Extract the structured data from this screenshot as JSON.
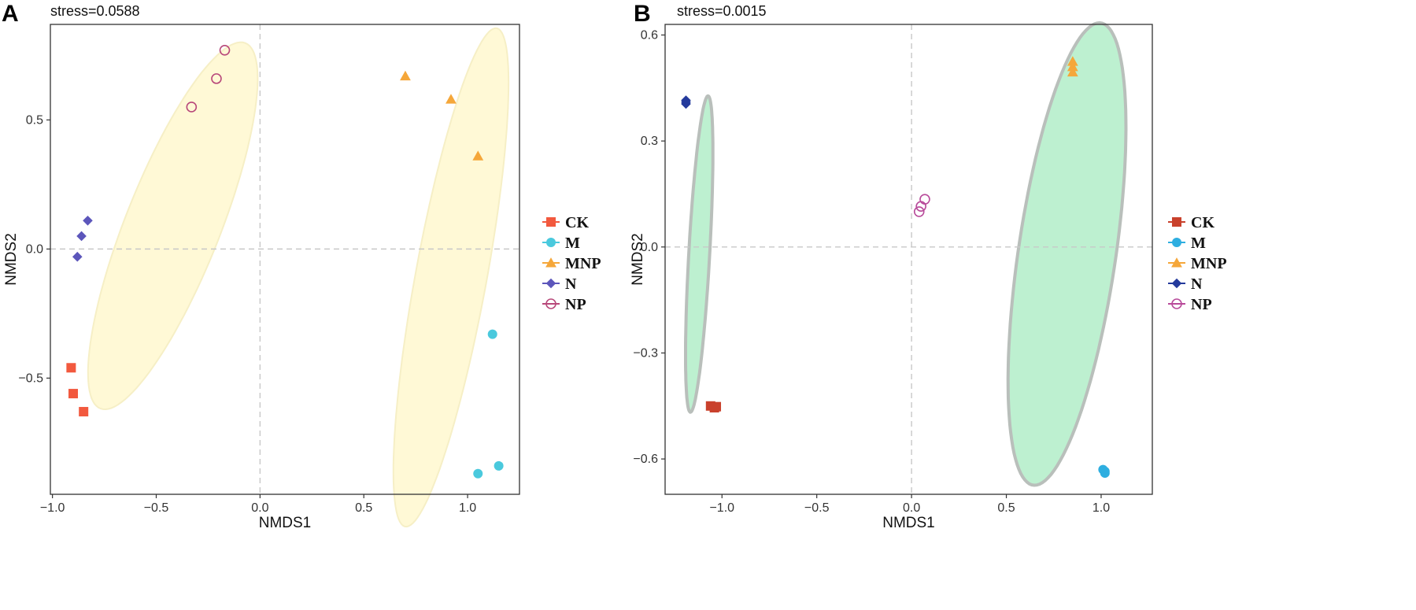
{
  "chart_data": [
    {
      "type": "scatter",
      "panel": "A",
      "title": "stress=0.0588",
      "xlabel": "NMDS1",
      "ylabel": "NMDS2",
      "xlim": [
        -1.01,
        1.25
      ],
      "ylim": [
        -0.95,
        0.87
      ],
      "xticks": [
        -1.0,
        -0.5,
        0.0,
        0.5,
        1.0
      ],
      "xtick_labels": [
        "−1.0",
        "−0.5",
        "0.0",
        "0.5",
        "1.0"
      ],
      "yticks": [
        -0.5,
        0.0,
        0.5
      ],
      "ytick_labels": [
        "−0.5",
        "0.0",
        "0.5"
      ],
      "grid": false,
      "reference_lines": {
        "x": 0,
        "y": 0,
        "style": "dashed"
      },
      "ellipse_style": {
        "fill": "#fff9d6",
        "stroke": "#f6efc6"
      },
      "ellipses": [
        {
          "cx": -0.42,
          "cy": 0.09,
          "rx": 0.79,
          "ry": 0.22,
          "angle_deg": 63
        },
        {
          "cx": 0.92,
          "cy": -0.11,
          "rx": 0.99,
          "ry": 0.17,
          "angle_deg": 77
        }
      ],
      "series": [
        {
          "name": "CK",
          "marker": "square",
          "color": "#f2593e",
          "points": [
            [
              -0.91,
              -0.46
            ],
            [
              -0.9,
              -0.56
            ],
            [
              -0.85,
              -0.63
            ]
          ]
        },
        {
          "name": "M",
          "marker": "circle",
          "color": "#4ac9dd",
          "points": [
            [
              1.12,
              -0.33
            ],
            [
              1.05,
              -0.87
            ],
            [
              1.15,
              -0.84
            ]
          ]
        },
        {
          "name": "MNP",
          "marker": "triangle",
          "color": "#f5a73a",
          "points": [
            [
              0.7,
              0.67
            ],
            [
              0.92,
              0.58
            ],
            [
              1.05,
              0.36
            ]
          ]
        },
        {
          "name": "N",
          "marker": "diamond",
          "color": "#5c56bb",
          "points": [
            [
              -0.83,
              0.11
            ],
            [
              -0.86,
              0.05
            ],
            [
              -0.88,
              -0.03
            ]
          ]
        },
        {
          "name": "NP",
          "marker": "open-circle",
          "color": "#b8487a",
          "points": [
            [
              -0.17,
              0.77
            ],
            [
              -0.21,
              0.66
            ],
            [
              -0.33,
              0.55
            ]
          ]
        }
      ],
      "legend": {
        "position": "right",
        "entries": [
          "CK",
          "M",
          "MNP",
          "N",
          "NP"
        ]
      }
    },
    {
      "type": "scatter",
      "panel": "B",
      "title": "stress=0.0015",
      "xlabel": "NMDS1",
      "ylabel": "NMDS2",
      "xlim": [
        -1.3,
        1.27
      ],
      "ylim": [
        -0.7,
        0.63
      ],
      "xticks": [
        -1.0,
        -0.5,
        0.0,
        0.5,
        1.0
      ],
      "xtick_labels": [
        "−1.0",
        "−0.5",
        "0.0",
        "0.5",
        "1.0"
      ],
      "yticks": [
        -0.6,
        -0.3,
        0.0,
        0.3,
        0.6
      ],
      "ytick_labels": [
        "−0.6",
        "−0.3",
        "0.0",
        "0.3",
        "0.6"
      ],
      "grid": false,
      "reference_lines": {
        "x": 0,
        "y": 0,
        "style": "dashed"
      },
      "ellipse_style": {
        "fill": "#bdf0d0",
        "stroke": "#b9bfbb"
      },
      "ellipses": [
        {
          "cx": -1.12,
          "cy": -0.02,
          "rx": 0.45,
          "ry": 0.055,
          "angle_deg": 84
        },
        {
          "cx": 0.82,
          "cy": -0.02,
          "rx": 0.68,
          "ry": 0.25,
          "angle_deg": 73
        }
      ],
      "series": [
        {
          "name": "CK",
          "marker": "square",
          "color": "#c9412c",
          "points": [
            [
              -1.06,
              -0.45
            ],
            [
              -1.04,
              -0.455
            ],
            [
              -1.03,
              -0.452
            ]
          ]
        },
        {
          "name": "M",
          "marker": "circle",
          "color": "#2eaee0",
          "points": [
            [
              1.01,
              -0.63
            ],
            [
              1.02,
              -0.64
            ],
            [
              1.02,
              -0.635
            ]
          ]
        },
        {
          "name": "MNP",
          "marker": "triangle",
          "color": "#f5a73a",
          "points": [
            [
              0.85,
              0.525
            ],
            [
              0.85,
              0.51
            ],
            [
              0.85,
              0.495
            ]
          ]
        },
        {
          "name": "N",
          "marker": "diamond",
          "color": "#243a9c",
          "points": [
            [
              -1.19,
              0.415
            ],
            [
              -1.19,
              0.405
            ],
            [
              -1.19,
              0.41
            ]
          ]
        },
        {
          "name": "NP",
          "marker": "open-circle",
          "color": "#b84a9a",
          "points": [
            [
              0.07,
              0.135
            ],
            [
              0.05,
              0.115
            ],
            [
              0.04,
              0.1
            ]
          ]
        }
      ],
      "legend": {
        "position": "right",
        "entries": [
          "CK",
          "M",
          "MNP",
          "N",
          "NP"
        ]
      }
    }
  ]
}
